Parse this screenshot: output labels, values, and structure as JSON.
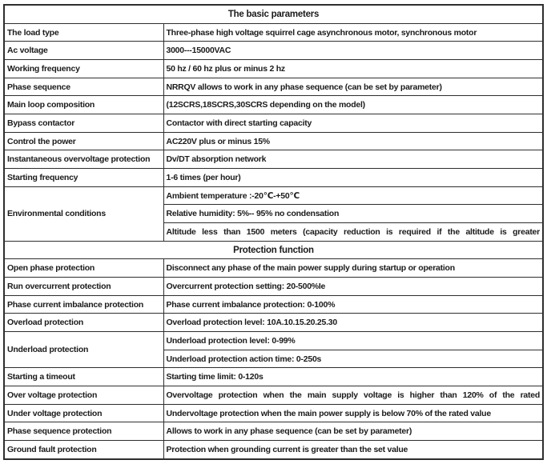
{
  "colors": {
    "background": "#ffffff",
    "border": "#2e2e2e",
    "text": "#1b1b1b"
  },
  "sections": [
    {
      "title": "The basic parameters",
      "rows": [
        {
          "label": "The load type",
          "values": [
            "Three-phase high voltage squirrel cage asynchronous motor, synchronous motor"
          ]
        },
        {
          "label": "Ac voltage",
          "values": [
            "3000---15000VAC"
          ]
        },
        {
          "label": "Working frequency",
          "values": [
            "50 hz / 60 hz plus or minus 2 hz"
          ]
        },
        {
          "label": "Phase sequence",
          "values": [
            "NRRQV allows to work in any phase sequence (can be set by parameter)"
          ]
        },
        {
          "label": "Main loop composition",
          "values": [
            "(12SCRS,18SCRS,30SCRS depending on the model)"
          ]
        },
        {
          "label": "Bypass contactor",
          "values": [
            "Contactor with direct starting capacity"
          ]
        },
        {
          "label": "Control the power",
          "values": [
            "AC220V plus or minus 15%"
          ]
        },
        {
          "label": "Instantaneous overvoltage protection",
          "values": [
            "Dv/DT absorption network"
          ]
        },
        {
          "label": "Starting frequency",
          "values": [
            "1-6 times (per hour)"
          ]
        },
        {
          "label": "Environmental conditions",
          "values": [
            "Ambient temperature :-20℃-+50℃",
            "Relative humidity: 5%-- 95% no condensation",
            "Altitude less than 1500 meters (capacity reduction is required if the altitude is greater"
          ]
        }
      ]
    },
    {
      "title": "Protection function",
      "rows": [
        {
          "label": "Open phase protection",
          "values": [
            "Disconnect any phase of the main power supply during startup or operation"
          ]
        },
        {
          "label": "Run overcurrent protection",
          "values": [
            "Overcurrent protection setting: 20-500%Ie"
          ]
        },
        {
          "label": "Phase current imbalance protection",
          "values": [
            "Phase current imbalance protection: 0-100%"
          ]
        },
        {
          "label": "Overload protection",
          "values": [
            "Overload protection level: 10A.10.15.20.25.30"
          ]
        },
        {
          "label": "Underload protection",
          "values": [
            "Underload protection level: 0-99%",
            "Underload protection action time: 0-250s"
          ]
        },
        {
          "label": "Starting a timeout",
          "values": [
            "Starting time limit: 0-120s"
          ]
        },
        {
          "label": "Over voltage protection",
          "values": [
            "Overvoltage protection when the main supply voltage is higher than 120% of the rated"
          ]
        },
        {
          "label": "Under voltage protection",
          "values": [
            "Undervoltage protection when the main power supply is below 70% of the rated value"
          ]
        },
        {
          "label": "Phase sequence protection",
          "values": [
            "Allows to work in any phase sequence (can be set by parameter)"
          ]
        },
        {
          "label": "Ground fault protection",
          "values": [
            "Protection when grounding current is greater than the set value"
          ]
        }
      ]
    }
  ]
}
